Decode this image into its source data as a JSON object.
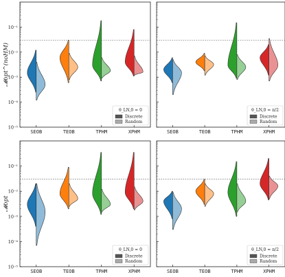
{
  "chart_data": [
    {
      "type": "violin",
      "panel": "top-left",
      "ylabel": "𝓜opt^(noHM)",
      "yscale": "log",
      "ylim": [
        1e-05,
        1
      ],
      "yticks": [
        "10⁻¹",
        "10⁻²",
        "10⁻³",
        "10⁻⁴",
        "10⁻⁵"
      ],
      "categories": [
        "SEOB",
        "TEOB",
        "TPHM",
        "XPHM"
      ],
      "threshold": 0.03,
      "legend": {
        "title": "θ_LN,0 = 0",
        "entries": [
          "Discrete",
          "Random"
        ],
        "position": "bottom-right"
      },
      "series": [
        {
          "name": "Discrete",
          "median": [
            0.0015,
            0.006,
            0.003,
            0.004
          ],
          "range": [
            [
              0.00025,
              0.012
            ],
            [
              0.0006,
              0.03
            ],
            [
              0.0007,
              0.18
            ],
            [
              0.0011,
              0.08
            ]
          ]
        },
        {
          "name": "Random",
          "median": [
            0.0005,
            0.0025,
            0.0018,
            0.0016
          ],
          "range": [
            [
              0.00012,
              0.004
            ],
            [
              0.0008,
              0.009
            ],
            [
              0.0009,
              0.006
            ],
            [
              0.0012,
              0.007
            ]
          ]
        }
      ]
    },
    {
      "type": "violin",
      "panel": "top-right",
      "yscale": "log",
      "ylim": [
        1e-05,
        1
      ],
      "categories": [
        "SEOB",
        "TEOB",
        "TPHM",
        "XPHM"
      ],
      "threshold": 0.03,
      "legend": {
        "title": "θ_LN,0 = π/2",
        "entries": [
          "Discrete",
          "Random"
        ],
        "position": "bottom-right"
      },
      "series": [
        {
          "name": "Discrete",
          "median": [
            0.002,
            0.004,
            0.003,
            0.006
          ],
          "range": [
            [
              0.0006,
              0.006
            ],
            [
              0.0018,
              0.009
            ],
            [
              0.0009,
              0.15
            ],
            [
              0.0012,
              0.02
            ]
          ]
        },
        {
          "name": "Random",
          "median": [
            0.0015,
            0.0032,
            0.0025,
            0.003
          ],
          "range": [
            [
              0.0002,
              0.005
            ],
            [
              0.0012,
              0.007
            ],
            [
              0.0008,
              0.008
            ],
            [
              0.0007,
              0.035
            ]
          ]
        }
      ]
    },
    {
      "type": "violin",
      "panel": "bottom-left",
      "ylabel": "𝓜opt",
      "yscale": "log",
      "ylim": [
        1e-05,
        1
      ],
      "yticks": [
        "10⁻¹",
        "10⁻²",
        "10⁻³",
        "10⁻⁴",
        "10⁻⁵"
      ],
      "categories": [
        "SEOB",
        "TEOB",
        "TPHM",
        "XPHM"
      ],
      "threshold": 0.03,
      "legend": {
        "title": "θ_LN,0 = 0",
        "entries": [
          "Discrete",
          "Random"
        ],
        "position": "bottom-right"
      },
      "series": [
        {
          "name": "Discrete",
          "median": [
            0.003,
            0.008,
            0.008,
            0.009
          ],
          "range": [
            [
              0.0004,
              0.02
            ],
            [
              0.002,
              0.09
            ],
            [
              0.0012,
              0.35
            ],
            [
              0.002,
              0.35
            ]
          ]
        },
        {
          "name": "Random",
          "median": [
            0.0015,
            0.005,
            0.003,
            0.004
          ],
          "range": [
            [
              7e-05,
              0.02
            ],
            [
              0.0025,
              0.02
            ],
            [
              0.0015,
              0.012
            ],
            [
              0.0018,
              0.015
            ]
          ]
        }
      ]
    },
    {
      "type": "violin",
      "panel": "bottom-right",
      "yscale": "log",
      "ylim": [
        1e-05,
        1
      ],
      "categories": [
        "SEOB",
        "TEOB",
        "TPHM",
        "XPHM"
      ],
      "threshold": 0.03,
      "legend": {
        "title": "θ_LN,0 = π/2",
        "entries": [
          "Discrete",
          "Random"
        ],
        "position": "bottom-right"
      },
      "series": [
        {
          "name": "Discrete",
          "median": [
            0.004,
            0.01,
            0.009,
            0.02
          ],
          "range": [
            [
              0.0008,
              0.01
            ],
            [
              0.003,
              0.03
            ],
            [
              0.001,
              0.15
            ],
            [
              0.0045,
              0.2
            ]
          ]
        },
        {
          "name": "Random",
          "median": [
            0.002,
            0.008,
            0.004,
            0.016
          ],
          "range": [
            [
              0.0003,
              0.009
            ],
            [
              0.0025,
              0.02
            ],
            [
              0.0015,
              0.02
            ],
            [
              0.005,
              0.04
            ]
          ]
        }
      ]
    }
  ],
  "colors": {
    "SEOB": {
      "discrete": "#1f77b4",
      "random": "#8fbbd9"
    },
    "TEOB": {
      "discrete": "#ff7f0e",
      "random": "#ffbf86"
    },
    "TPHM": {
      "discrete": "#2ca02c",
      "random": "#95cf95"
    },
    "XPHM": {
      "discrete": "#d62728",
      "random": "#ea9293"
    },
    "legend_discrete": "#555555",
    "legend_random": "#aaaaaa",
    "threshold_line": "#666666"
  }
}
